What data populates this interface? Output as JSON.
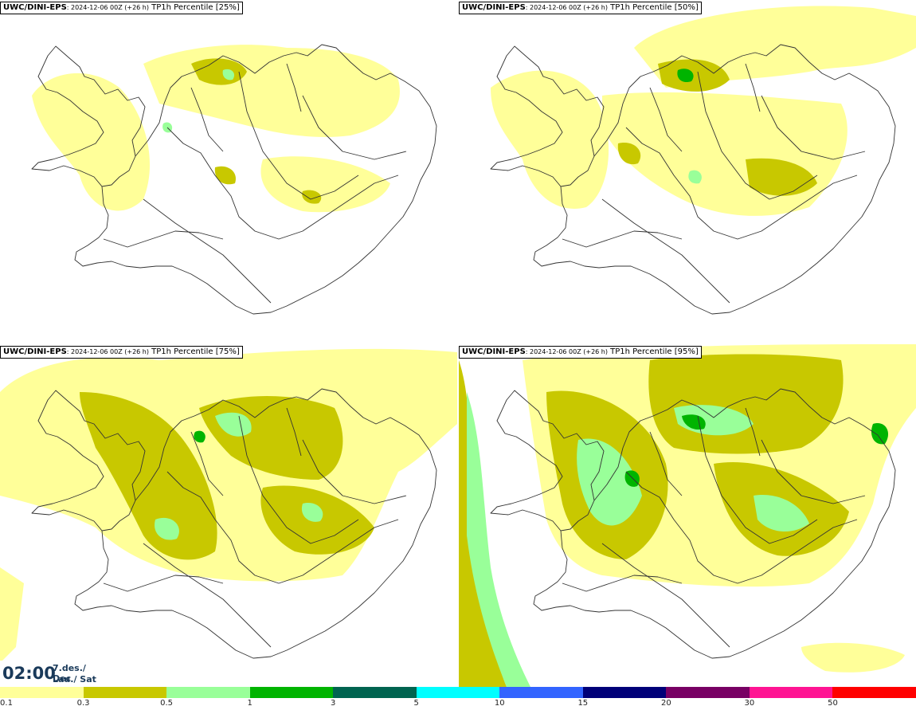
{
  "panels": [
    {
      "model": "UWC/DINI-EPS",
      "init": ": 2024-12-06 00Z (+26 h)",
      "field": " TP1h Percentile [25%]",
      "level": 1
    },
    {
      "model": "UWC/DINI-EPS",
      "init": ": 2024-12-06 00Z (+26 h)",
      "field": " TP1h Percentile [50%]",
      "level": 2
    },
    {
      "model": "UWC/DINI-EPS",
      "init": ": 2024-12-06 00Z (+26 h)",
      "field": " TP1h Percentile [75%]",
      "level": 3
    },
    {
      "model": "UWC/DINI-EPS",
      "init": ": 2024-12-06 00Z (+26 h)",
      "field": " TP1h Percentile [95%]",
      "level": 4
    }
  ],
  "valid": {
    "time": "02:00",
    "date_line1": "7.des./ Dec",
    "date_line2": "Lau./ Sat"
  },
  "legend": {
    "colors": [
      "#ffff99",
      "#c8c800",
      "#99ff99",
      "#00b400",
      "#006450",
      "#00ffff",
      "#3264ff",
      "#000078",
      "#780064",
      "#ff1493",
      "#ff0000"
    ],
    "ticks": [
      "0.1",
      "0.3",
      "0.5",
      "1",
      "3",
      "5",
      "10",
      "15",
      "20",
      "30",
      "50"
    ]
  }
}
